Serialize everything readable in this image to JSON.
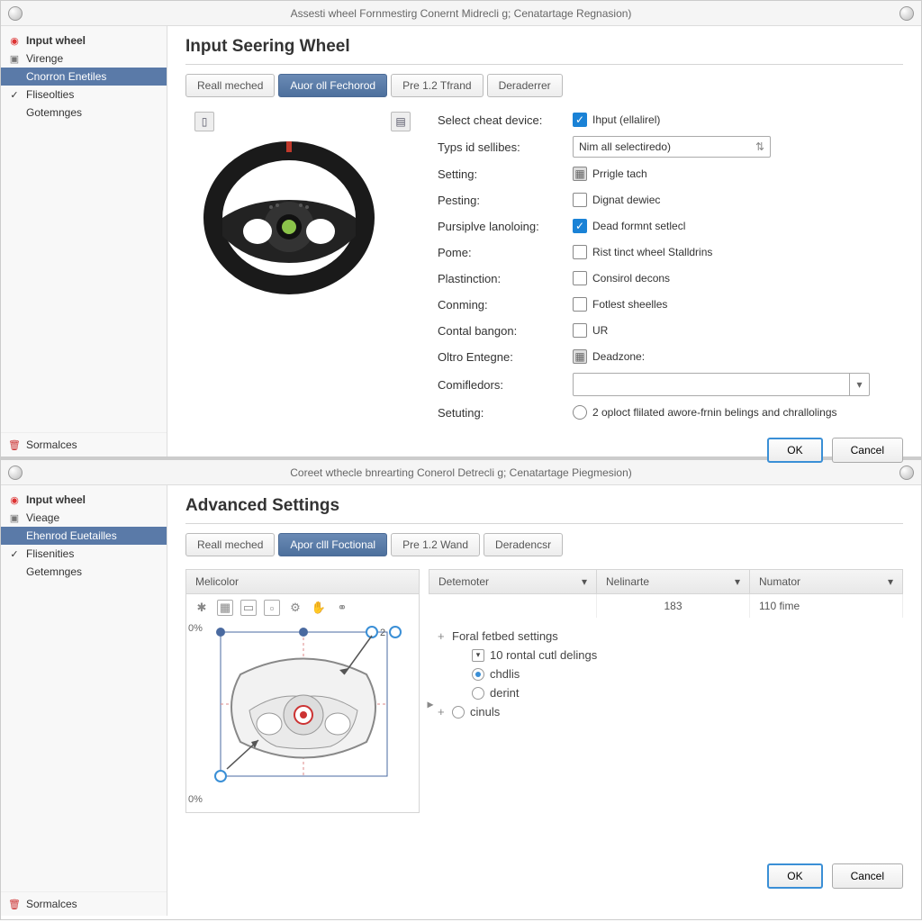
{
  "window1": {
    "title": "Assesti wheel Fornmestirg Conernt Midrecli g; Cenatartage Regnasion)",
    "sidebar": {
      "items": [
        {
          "icon": "◉",
          "label": "Input wheel",
          "iconColor": "#d33"
        },
        {
          "icon": "▣",
          "label": "Virenge",
          "iconColor": "#777"
        },
        {
          "icon": "",
          "label": "Cnorron Enetiles",
          "selected": true
        },
        {
          "icon": "✓",
          "label": "Fliseolties",
          "iconColor": "#333"
        },
        {
          "icon": "",
          "label": "Gotemnges"
        }
      ],
      "footer": {
        "icon": "🗑",
        "label": "Sormalces",
        "iconColor": "#c33"
      }
    },
    "pageTitle": "Input Seering Wheel",
    "tabs": [
      {
        "label": "Reall meched"
      },
      {
        "label": "Auor oll Fechorod",
        "active": true
      },
      {
        "label": "Pre 1.2 Tfrand"
      },
      {
        "label": "Deraderrer"
      }
    ],
    "form": {
      "rows": [
        {
          "label": "Select cheat device:",
          "type": "check",
          "checked": true,
          "value": "Ihput (ellalirel)"
        },
        {
          "label": "Typs id sellibes:",
          "type": "input",
          "value": "Nim all selectiredo)",
          "endIcon": "⇅"
        },
        {
          "label": "Setting:",
          "type": "icon-check",
          "value": "Prrigle tach"
        },
        {
          "label": "Pesting:",
          "type": "check",
          "checked": false,
          "value": "Dignat dewiec"
        },
        {
          "label": "Pursiplve lanoloing:",
          "type": "check",
          "checked": true,
          "value": "Dead formnt setlecl"
        },
        {
          "label": "Pome:",
          "type": "check",
          "checked": false,
          "value": "Rist tinct wheel Stalldrins"
        },
        {
          "label": "Plastinction:",
          "type": "check",
          "checked": false,
          "value": "Consirol decons"
        },
        {
          "label": "Conming:",
          "type": "check",
          "checked": false,
          "value": "Fotlest sheelles"
        },
        {
          "label": "Contal bangon:",
          "type": "check",
          "checked": false,
          "value": "UR"
        },
        {
          "label": "Oltro Entegne:",
          "type": "icon-check",
          "value": "Deadzone:"
        },
        {
          "label": "Comifledors:",
          "type": "dropdown",
          "value": ""
        },
        {
          "label": "Setuting:",
          "type": "radio",
          "value": "2 oploct flilated awore-frnin belings and chrallolings"
        }
      ]
    },
    "buttons": {
      "ok": "OK",
      "cancel": "Cancel"
    }
  },
  "window2": {
    "title": "Coreet wthecle bnrearting Conerol Detrecli g; Cenatartage Piegmesion)",
    "sidebar": {
      "items": [
        {
          "icon": "◉",
          "label": "Input wheel",
          "iconColor": "#d33"
        },
        {
          "icon": "▣",
          "label": "Vieage",
          "iconColor": "#777"
        },
        {
          "icon": "",
          "label": "Ehenrod Euetailles",
          "selected": true
        },
        {
          "icon": "✓",
          "label": "Flisenities",
          "iconColor": "#333"
        },
        {
          "icon": "",
          "label": "Getemnges"
        }
      ],
      "footer": {
        "icon": "🗑",
        "label": "Sormalces",
        "iconColor": "#c33"
      }
    },
    "pageTitle": "Advanced Settings",
    "tabs": [
      {
        "label": "Reall meched"
      },
      {
        "label": "Apor clll Foctional",
        "active": true
      },
      {
        "label": "Pre 1.2 Wand"
      },
      {
        "label": "Deradencsr"
      }
    ],
    "columns": {
      "melicolor": "Melicolor",
      "detemoter": "Detemoter",
      "nelinarte": "Nelinarte",
      "numator": "Numator"
    },
    "dataRow": {
      "det": "",
      "nel": "183",
      "num": "110 fime"
    },
    "tree": [
      {
        "expand": "+",
        "icon": "",
        "label": "Foral fetbed settings"
      },
      {
        "expand": "",
        "icon": "box",
        "label": "10 rontal cutl delings",
        "indent": 1
      },
      {
        "expand": "",
        "icon": "radio-sel",
        "label": "chdlis",
        "indent": 1
      },
      {
        "expand": "",
        "icon": "radio",
        "label": "derint",
        "indent": 1
      },
      {
        "expand": "+",
        "icon": "radio",
        "label": "cinuls",
        "indent": 0
      }
    ],
    "axisLabels": {
      "tl": "0%",
      "bl": "0%",
      "tr": "2"
    },
    "buttons": {
      "ok": "OK",
      "cancel": "Cancel"
    }
  },
  "colors": {
    "accent": "#1a82d6",
    "sidebarSel": "#5a7aa8",
    "wheelRim": "#1a1a1a",
    "wheelHub": "#333",
    "wheelLogo": "#8bc34a",
    "wheelMark": "#c0392b"
  }
}
